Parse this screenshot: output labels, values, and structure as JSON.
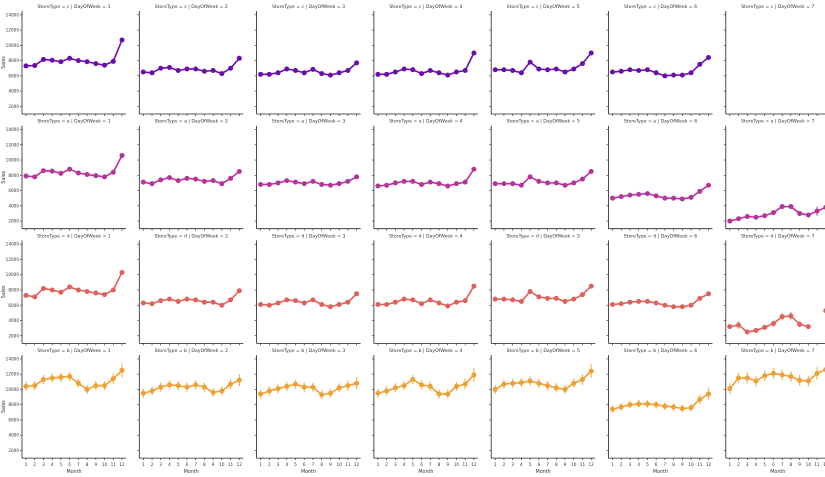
{
  "figure_labels": {
    "xlabel": "Month",
    "ylabel": "Sales"
  },
  "chart_data": {
    "type": "line",
    "xlabel": "Month",
    "ylabel": "Sales",
    "x": [
      1,
      2,
      3,
      4,
      5,
      6,
      7,
      8,
      9,
      10,
      11,
      12
    ],
    "x_tick_labels": [
      "1",
      "2",
      "3",
      "4",
      "5",
      "6",
      "7",
      "8",
      "9",
      "10",
      "11",
      "12"
    ],
    "ylim": [
      1000,
      14500
    ],
    "y_ticks": [
      2000,
      4000,
      6000,
      8000,
      10000,
      12000,
      14000
    ],
    "y_tick_labels": [
      "2000",
      "4000",
      "6000",
      "8000",
      "10000",
      "12000",
      "14000"
    ],
    "grid": false,
    "rows": [
      {
        "store_type": "c",
        "color": "#6a0dad",
        "panels": [
          {
            "title": "StoreType = c | DayOfWeek = 1",
            "values": [
              7300,
              7350,
              8150,
              8050,
              7850,
              8300,
              8000,
              7850,
              7600,
              7400,
              7900,
              10700
            ],
            "errors": [
              150,
              150,
              150,
              150,
              150,
              150,
              150,
              150,
              150,
              150,
              150,
              200
            ]
          },
          {
            "title": "StoreType = c | DayOfWeek = 2",
            "values": [
              6500,
              6400,
              7000,
              7100,
              6700,
              6900,
              6900,
              6600,
              6700,
              6300,
              7000,
              8300
            ],
            "errors": [
              150,
              150,
              150,
              150,
              150,
              150,
              150,
              150,
              150,
              150,
              150,
              200
            ]
          },
          {
            "title": "StoreType = c | DayOfWeek = 3",
            "values": [
              6200,
              6200,
              6400,
              6900,
              6700,
              6400,
              6850,
              6300,
              6100,
              6400,
              6700,
              7700
            ],
            "errors": [
              150,
              150,
              150,
              150,
              150,
              150,
              150,
              150,
              150,
              150,
              150,
              200
            ]
          },
          {
            "title": "StoreType = c | DayOfWeek = 4",
            "values": [
              6200,
              6200,
              6500,
              6900,
              6800,
              6300,
              6700,
              6400,
              6100,
              6500,
              6700,
              9000
            ],
            "errors": [
              150,
              150,
              150,
              150,
              150,
              150,
              150,
              150,
              150,
              150,
              150,
              200
            ]
          },
          {
            "title": "StoreType = c | DayOfWeek = 5",
            "values": [
              6800,
              6800,
              6700,
              6400,
              7800,
              6900,
              6800,
              6900,
              6500,
              6900,
              7600,
              9000
            ],
            "errors": [
              150,
              150,
              150,
              150,
              150,
              150,
              150,
              150,
              150,
              150,
              150,
              200
            ]
          },
          {
            "title": "StoreType = c | DayOfWeek = 6",
            "values": [
              6500,
              6600,
              6800,
              6700,
              6800,
              6400,
              6000,
              6100,
              6100,
              6400,
              7500,
              8400
            ],
            "errors": [
              150,
              150,
              150,
              150,
              150,
              150,
              150,
              150,
              150,
              150,
              150,
              200
            ]
          },
          {
            "title": "StoreType = c | DayOfWeek = 7",
            "values": [],
            "errors": []
          }
        ]
      },
      {
        "store_type": "a",
        "color": "#b8329c",
        "panels": [
          {
            "title": "StoreType = a | DayOfWeek = 1",
            "values": [
              7900,
              7800,
              8600,
              8550,
              8250,
              8800,
              8300,
              8100,
              7950,
              7800,
              8400,
              10600
            ],
            "errors": [
              150,
              150,
              150,
              150,
              150,
              150,
              150,
              150,
              150,
              150,
              150,
              200
            ]
          },
          {
            "title": "StoreType = a | DayOfWeek = 2",
            "values": [
              7100,
              6900,
              7400,
              7700,
              7300,
              7600,
              7500,
              7200,
              7300,
              6900,
              7600,
              8500
            ],
            "errors": [
              150,
              150,
              150,
              150,
              150,
              150,
              150,
              150,
              150,
              150,
              150,
              200
            ]
          },
          {
            "title": "StoreType = a | DayOfWeek = 3",
            "values": [
              6800,
              6800,
              7000,
              7300,
              7100,
              6900,
              7200,
              6800,
              6700,
              6900,
              7200,
              7800
            ],
            "errors": [
              150,
              150,
              150,
              150,
              150,
              150,
              150,
              150,
              150,
              150,
              150,
              200
            ]
          },
          {
            "title": "StoreType = a | DayOfWeek = 4",
            "values": [
              6600,
              6700,
              7000,
              7200,
              7200,
              6800,
              7100,
              6900,
              6600,
              6900,
              7100,
              8800
            ],
            "errors": [
              150,
              150,
              150,
              150,
              150,
              150,
              150,
              150,
              150,
              150,
              150,
              200
            ]
          },
          {
            "title": "StoreType = a | DayOfWeek = 5",
            "values": [
              6900,
              6900,
              6900,
              6700,
              7800,
              7200,
              7000,
              7000,
              6700,
              7000,
              7500,
              8500
            ],
            "errors": [
              150,
              150,
              150,
              150,
              150,
              150,
              150,
              150,
              150,
              150,
              150,
              200
            ]
          },
          {
            "title": "StoreType = a | DayOfWeek = 6",
            "values": [
              5000,
              5200,
              5400,
              5500,
              5600,
              5300,
              5000,
              5000,
              4900,
              5100,
              5900,
              6700
            ],
            "errors": [
              150,
              150,
              150,
              150,
              150,
              150,
              150,
              150,
              150,
              150,
              150,
              200
            ]
          },
          {
            "title": "StoreType = a | DayOfWeek = 7",
            "values": [
              2000,
              2300,
              2600,
              2500,
              2700,
              3100,
              3900,
              3900,
              3000,
              2800,
              3300,
              3800
            ],
            "errors": [
              300,
              300,
              300,
              300,
              300,
              300,
              300,
              300,
              300,
              300,
              600,
              400
            ]
          }
        ]
      },
      {
        "store_type": "d",
        "color": "#e0605a",
        "panels": [
          {
            "title": "StoreType = d | DayOfWeek = 1",
            "values": [
              7300,
              7100,
              8200,
              8000,
              7700,
              8400,
              8000,
              7800,
              7600,
              7400,
              8000,
              10300
            ],
            "errors": [
              150,
              150,
              150,
              150,
              150,
              150,
              150,
              150,
              150,
              150,
              150,
              200
            ]
          },
          {
            "title": "StoreType = d | DayOfWeek = 2",
            "values": [
              6300,
              6200,
              6600,
              6800,
              6500,
              6800,
              6700,
              6400,
              6400,
              6000,
              6700,
              7900
            ],
            "errors": [
              150,
              150,
              150,
              150,
              150,
              150,
              150,
              150,
              150,
              150,
              150,
              200
            ]
          },
          {
            "title": "StoreType = d | DayOfWeek = 3",
            "values": [
              6100,
              6000,
              6300,
              6700,
              6600,
              6300,
              6700,
              6100,
              5800,
              6100,
              6400,
              7500
            ],
            "errors": [
              150,
              150,
              150,
              150,
              150,
              150,
              150,
              150,
              150,
              150,
              150,
              200
            ]
          },
          {
            "title": "StoreType = d | DayOfWeek = 4",
            "values": [
              6100,
              6100,
              6400,
              6800,
              6700,
              6200,
              6700,
              6300,
              5900,
              6400,
              6600,
              8500
            ],
            "errors": [
              150,
              150,
              150,
              150,
              150,
              150,
              150,
              150,
              150,
              150,
              150,
              200
            ]
          },
          {
            "title": "StoreType = d | DayOfWeek = 5",
            "values": [
              6800,
              6800,
              6700,
              6500,
              7800,
              7100,
              6900,
              6900,
              6500,
              6800,
              7400,
              8500
            ],
            "errors": [
              150,
              150,
              150,
              150,
              150,
              150,
              150,
              150,
              150,
              150,
              150,
              200
            ]
          },
          {
            "title": "StoreType = d | DayOfWeek = 6",
            "values": [
              6100,
              6200,
              6400,
              6500,
              6500,
              6300,
              6000,
              5800,
              5800,
              6000,
              6900,
              7500
            ],
            "errors": [
              150,
              150,
              150,
              150,
              150,
              150,
              150,
              150,
              150,
              150,
              150,
              200
            ]
          },
          {
            "title": "StoreType = d | DayOfWeek = 7",
            "values": [
              3200,
              3400,
              2500,
              2700,
              3100,
              3600,
              4500,
              4600,
              3500,
              3200,
              null,
              5300
            ],
            "errors": [
              300,
              500,
              300,
              300,
              300,
              400,
              500,
              500,
              400,
              300,
              0,
              600
            ]
          }
        ]
      },
      {
        "store_type": "b",
        "color": "#f0a030",
        "panels": [
          {
            "title": "StoreType = b | DayOfWeek = 1",
            "values": [
              10400,
              10500,
              11300,
              11500,
              11600,
              11700,
              10800,
              10000,
              10500,
              10500,
              11400,
              12500
            ],
            "errors": [
              600,
              600,
              600,
              600,
              600,
              600,
              600,
              600,
              600,
              600,
              700,
              900
            ]
          },
          {
            "title": "StoreType = b | DayOfWeek = 2",
            "values": [
              9500,
              9800,
              10300,
              10600,
              10500,
              10300,
              10600,
              10300,
              9600,
              9800,
              10700,
              11200
            ],
            "errors": [
              600,
              600,
              600,
              600,
              600,
              600,
              600,
              600,
              600,
              600,
              700,
              800
            ]
          },
          {
            "title": "StoreType = b | DayOfWeek = 3",
            "values": [
              9400,
              9800,
              10100,
              10400,
              10700,
              10300,
              10300,
              9300,
              9500,
              10200,
              10500,
              10800
            ],
            "errors": [
              600,
              600,
              600,
              600,
              600,
              600,
              600,
              600,
              600,
              600,
              700,
              800
            ]
          },
          {
            "title": "StoreType = b | DayOfWeek = 4",
            "values": [
              9500,
              9800,
              10200,
              10500,
              11300,
              10600,
              10400,
              9400,
              9400,
              10400,
              10700,
              11900
            ],
            "errors": [
              600,
              600,
              600,
              600,
              600,
              600,
              600,
              600,
              600,
              600,
              700,
              900
            ]
          },
          {
            "title": "StoreType = b | DayOfWeek = 5",
            "values": [
              10000,
              10700,
              10800,
              10900,
              11100,
              10800,
              10500,
              10200,
              10000,
              10800,
              11300,
              12400
            ],
            "errors": [
              600,
              600,
              600,
              600,
              600,
              600,
              600,
              600,
              600,
              600,
              700,
              900
            ]
          },
          {
            "title": "StoreType = b | DayOfWeek = 6",
            "values": [
              7400,
              7700,
              8000,
              8100,
              8100,
              8000,
              7800,
              7700,
              7500,
              7600,
              8700,
              9400
            ],
            "errors": [
              500,
              500,
              500,
              500,
              500,
              500,
              500,
              500,
              500,
              500,
              600,
              800
            ]
          },
          {
            "title": "StoreType = b | DayOfWeek = 7",
            "values": [
              10100,
              11500,
              11500,
              11100,
              11800,
              12100,
              11900,
              11700,
              11200,
              11100,
              12100,
              12600
            ],
            "errors": [
              700,
              700,
              700,
              700,
              700,
              700,
              700,
              700,
              700,
              700,
              800,
              900
            ]
          }
        ]
      }
    ]
  }
}
